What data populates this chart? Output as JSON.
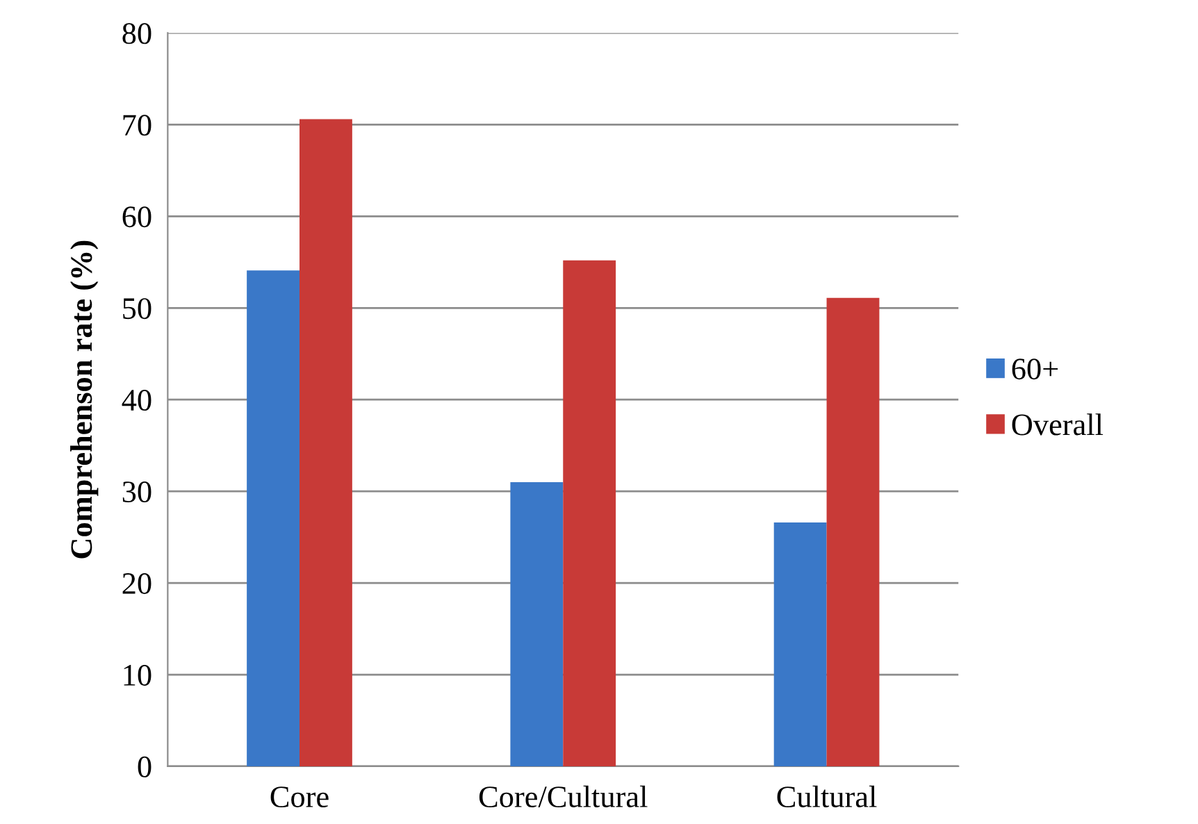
{
  "chart_data": {
    "type": "bar",
    "ylabel": "Comprehenson rate (%)",
    "categories": [
      "Core",
      "Core/Cultural",
      "Cultural"
    ],
    "series": [
      {
        "name": "60+",
        "color": "#3a78c8",
        "values": [
          54.1,
          31.0,
          26.6
        ]
      },
      {
        "name": "Overall",
        "color": "#c83a37",
        "values": [
          70.6,
          55.2,
          51.1
        ]
      }
    ],
    "ylim": [
      0,
      80
    ],
    "yticks": [
      0,
      10,
      20,
      30,
      40,
      50,
      60,
      70,
      80
    ],
    "grid": "y",
    "legend": "right"
  }
}
